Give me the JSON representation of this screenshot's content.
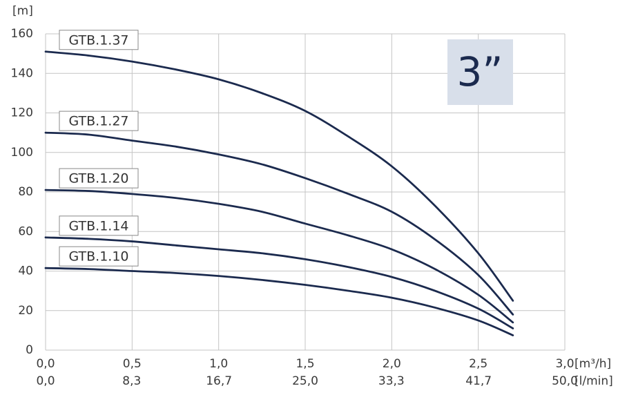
{
  "chart_data": {
    "type": "line",
    "y_label": "[m]",
    "x_label": "[m³/h]",
    "x2_label": "[l/min]",
    "badge": "3”",
    "x": [
      0,
      0.25,
      0.5,
      0.75,
      1.0,
      1.25,
      1.5,
      1.75,
      2.0,
      2.25,
      2.5,
      2.7
    ],
    "series": [
      {
        "name": "GTB.1.37",
        "color": "#1b2a4e",
        "values": [
          151,
          149,
          146,
          142,
          137,
          130,
          121,
          108,
          93,
          73,
          49,
          25
        ]
      },
      {
        "name": "GTB.1.27",
        "color": "#1b2a4e",
        "values": [
          110,
          109,
          106,
          103,
          99,
          94,
          87,
          79,
          70,
          56,
          38,
          18
        ]
      },
      {
        "name": "GTB.1.20",
        "color": "#1b2a4e",
        "values": [
          81,
          80.5,
          79,
          77,
          74,
          70,
          64,
          58,
          51,
          41,
          28,
          14
        ]
      },
      {
        "name": "GTB.1.14",
        "color": "#1b2a4e",
        "values": [
          57,
          56.3,
          55,
          53,
          51,
          49,
          46,
          42,
          37,
          30,
          21,
          11
        ]
      },
      {
        "name": "GTB.1.10",
        "color": "#1b2a4e",
        "values": [
          41.5,
          41,
          40,
          39,
          37.5,
          35.5,
          33,
          30,
          26.5,
          21.5,
          15,
          7.5
        ]
      }
    ],
    "xlim": [
      0,
      3
    ],
    "ylim": [
      0,
      160
    ],
    "xticks": [
      {
        "value": 0,
        "label": "0,0"
      },
      {
        "value": 0.5,
        "label": "0,5"
      },
      {
        "value": 1,
        "label": "1,0"
      },
      {
        "value": 1.5,
        "label": "1,5"
      },
      {
        "value": 2,
        "label": "2,0"
      },
      {
        "value": 2.5,
        "label": "2,5"
      },
      {
        "value": 3,
        "label": "3,0"
      }
    ],
    "x2lim": [
      0,
      50
    ],
    "x2ticks": [
      {
        "value": 0,
        "label": "0,0"
      },
      {
        "value": 8.3,
        "label": "8,3"
      },
      {
        "value": 16.7,
        "label": "16,7"
      },
      {
        "value": 25,
        "label": "25,0"
      },
      {
        "value": 33.3,
        "label": "33,3"
      },
      {
        "value": 41.7,
        "label": "41,7"
      },
      {
        "value": 50,
        "label": "50,0"
      }
    ],
    "yticks": [
      0,
      20,
      40,
      60,
      80,
      100,
      120,
      140,
      160
    ],
    "grid": true
  }
}
